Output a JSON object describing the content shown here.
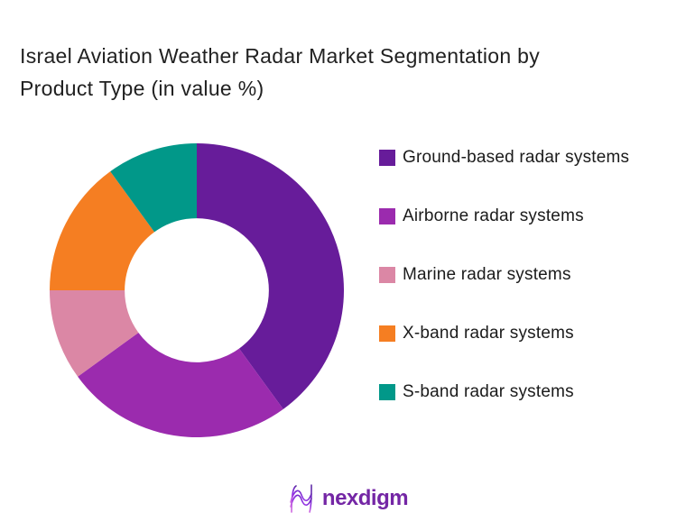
{
  "title": {
    "line1": "Israel Aviation Weather Radar Market Segmentation by",
    "line2": "Product Type (in value %)"
  },
  "chart_data": {
    "type": "pie",
    "subtype": "donut",
    "title": "Israel Aviation Weather Radar Market Segmentation by Product Type (in value %)",
    "unit": "value %",
    "categories": [
      "Ground-based radar systems",
      "Airborne radar systems",
      "Marine radar systems",
      "X-band radar systems",
      "S-band radar systems"
    ],
    "values": [
      40,
      25,
      10,
      15,
      10
    ],
    "colors": [
      "#671c9a",
      "#9b2bae",
      "#db87a5",
      "#f57e22",
      "#019889"
    ],
    "start_angle_deg": 0,
    "direction": "clockwise",
    "inner_radius_ratio": 0.49,
    "legend_position": "right",
    "data_labels": "none"
  },
  "legend": {
    "items": [
      {
        "label": "Ground-based radar systems",
        "color": "#671c9a"
      },
      {
        "label": "Airborne radar systems",
        "color": "#9b2bae"
      },
      {
        "label": "Marine radar systems",
        "color": "#db87a5"
      },
      {
        "label": "X-band radar systems",
        "color": "#f57e22"
      },
      {
        "label": "S-band radar systems",
        "color": "#019889"
      }
    ]
  },
  "footer": {
    "brand": "nexdigm",
    "brand_color": "#7426a5",
    "icon_gradient": [
      "#d36ee0",
      "#8a2be2",
      "#5a2d9e"
    ]
  }
}
